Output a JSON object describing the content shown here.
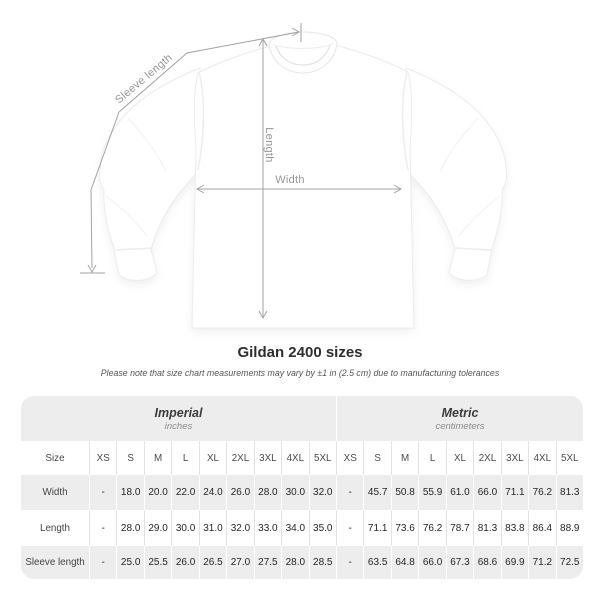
{
  "title": "Gildan 2400 sizes",
  "note": "Please note that size chart measurements may vary by ±1 in (2.5 cm) due to manufacturing tolerances",
  "diagram": {
    "labels": {
      "sleeve_length": "Sleeve length",
      "length": "Length",
      "width": "Width"
    }
  },
  "table": {
    "size_label": "Size",
    "unit_groups": [
      {
        "name": "Imperial",
        "sub": "inches"
      },
      {
        "name": "Metric",
        "sub": "centimeters"
      }
    ],
    "sizes": [
      "XS",
      "S",
      "M",
      "L",
      "XL",
      "2XL",
      "3XL",
      "4XL",
      "5XL"
    ],
    "rows": [
      {
        "label": "Width",
        "imperial": [
          "-",
          "18.0",
          "20.0",
          "22.0",
          "24.0",
          "26.0",
          "28.0",
          "30.0",
          "32.0"
        ],
        "metric": [
          "-",
          "45.7",
          "50.8",
          "55.9",
          "61.0",
          "66.0",
          "71.1",
          "76.2",
          "81.3"
        ]
      },
      {
        "label": "Length",
        "imperial": [
          "-",
          "28.0",
          "29.0",
          "30.0",
          "31.0",
          "32.0",
          "33.0",
          "34.0",
          "35.0"
        ],
        "metric": [
          "-",
          "71.1",
          "73.6",
          "76.2",
          "78.7",
          "81.3",
          "83.8",
          "86.4",
          "88.9"
        ]
      },
      {
        "label": "Sleeve length",
        "imperial": [
          "-",
          "25.0",
          "25.5",
          "26.0",
          "26.5",
          "27.0",
          "27.5",
          "28.0",
          "28.5"
        ],
        "metric": [
          "-",
          "63.5",
          "64.8",
          "66.0",
          "67.3",
          "68.6",
          "69.9",
          "71.2",
          "72.5"
        ]
      }
    ]
  },
  "colors": {
    "table_gray": "#ededed",
    "value_text": "#262626",
    "measure_line": "#a3a3a6",
    "measure_label": "#95959a"
  }
}
